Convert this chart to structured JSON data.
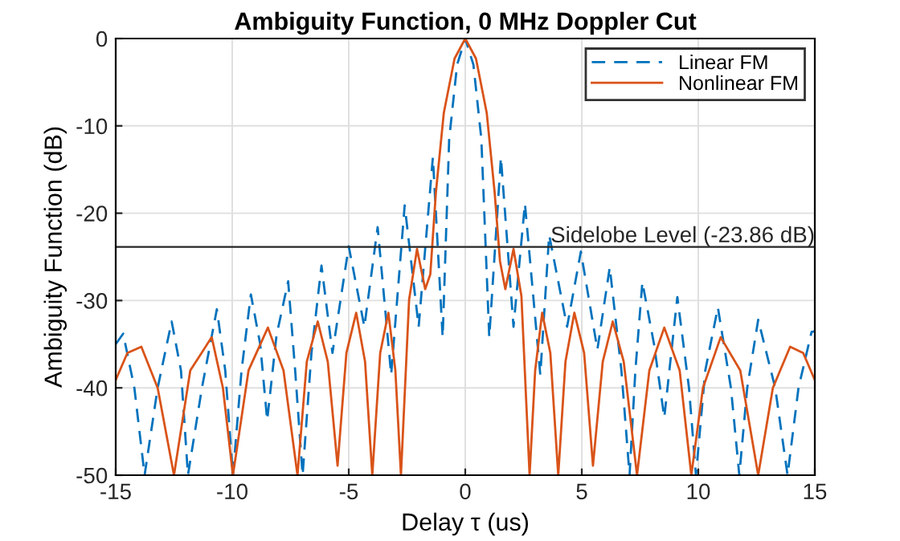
{
  "chart_data": {
    "type": "line",
    "title": "Ambiguity Function, 0 MHz Doppler Cut",
    "xlabel": "Delay τ (us)",
    "ylabel": "Ambiguity Function (dB)",
    "xlim": [
      -15,
      15
    ],
    "xticks": [
      -15,
      -10,
      -5,
      0,
      5,
      10,
      15
    ],
    "ylim": [
      -50,
      0
    ],
    "yticks": [
      -50,
      -40,
      -30,
      -20,
      -10,
      0
    ],
    "grid": true,
    "legend": "top right",
    "series": [
      {
        "name": "Linear FM",
        "color": "#0072bd",
        "line_style": "dashed",
        "x": [
          -15,
          -14.68,
          -14.2,
          -13.76,
          -13.2,
          -12.6,
          -12.2,
          -11.9,
          -11.3,
          -10.66,
          -10.3,
          -9.97,
          -9.6,
          -9.2,
          -8.8,
          -8.5,
          -8.1,
          -7.6,
          -7.3,
          -6.98,
          -6.6,
          -6.17,
          -5.7,
          -5.0,
          -4.33,
          -3.76,
          -3.18,
          -2.6,
          -2.0,
          -1.39,
          -0.97,
          -0.69,
          -0.35,
          0,
          0.35,
          0.69,
          1.03,
          1.53,
          2.07,
          2.56,
          3.22,
          3.6,
          4.37,
          4.96,
          5.67,
          6.2,
          6.7,
          7.05,
          7.3,
          7.6,
          8.1,
          8.54,
          9.1,
          9.6,
          9.9,
          10.3,
          10.84,
          11.4,
          11.76,
          12.1,
          12.57,
          13.3,
          13.83,
          14.3,
          14.86,
          15
        ],
        "values": [
          -35,
          -33.8,
          -40,
          -50,
          -40,
          -32.4,
          -38,
          -50,
          -40,
          -31,
          -38,
          -50,
          -38,
          -29.3,
          -35,
          -43.7,
          -34,
          -27.8,
          -38,
          -50,
          -36,
          -26,
          -36,
          -23.8,
          -33,
          -21.6,
          -38.5,
          -19.1,
          -33,
          -13.6,
          -34.2,
          -11.5,
          -3,
          0,
          -3,
          -11.5,
          -34.2,
          -13.6,
          -33,
          -18.9,
          -38.5,
          -22.5,
          -33,
          -24.4,
          -35.6,
          -26.2,
          -38,
          -50,
          -38,
          -27.9,
          -35,
          -43.4,
          -29.6,
          -40,
          -50,
          -38,
          -30.8,
          -40,
          -50,
          -40,
          -32.2,
          -40,
          -50,
          -40,
          -33.6,
          -33.5
        ]
      },
      {
        "name": "Nonlinear FM",
        "color": "#d95319",
        "line_style": "solid",
        "x": [
          -15,
          -14.5,
          -13.9,
          -13.2,
          -12.5,
          -11.8,
          -10.88,
          -10.4,
          -9.97,
          -9.3,
          -8.47,
          -7.8,
          -7.2,
          -6.8,
          -6.33,
          -5.9,
          -5.48,
          -5.1,
          -4.68,
          -4.3,
          -3.99,
          -3.65,
          -3.3,
          -3.0,
          -2.76,
          -2.41,
          -2.07,
          -1.72,
          -1.5,
          -1.26,
          -0.92,
          -0.46,
          0,
          0.46,
          0.92,
          1.26,
          1.49,
          1.72,
          2.07,
          2.41,
          2.76,
          3.0,
          3.3,
          3.65,
          3.99,
          4.3,
          4.68,
          5.1,
          5.48,
          5.9,
          6.33,
          6.8,
          7.37,
          7.9,
          8.54,
          9.2,
          9.7,
          10.2,
          10.96,
          11.8,
          12.57,
          13.2,
          13.94,
          14.5,
          15
        ],
        "values": [
          -39.1,
          -36,
          -35.3,
          -40,
          -50,
          -38,
          -34.2,
          -40,
          -50,
          -38,
          -33.1,
          -38,
          -50,
          -37,
          -32.4,
          -37,
          -48.9,
          -36,
          -31.4,
          -37,
          -50,
          -36,
          -31.4,
          -38,
          -50,
          -29.9,
          -24.1,
          -28.7,
          -27,
          -17.6,
          -8.5,
          -2.3,
          0,
          -2.3,
          -8.5,
          -17.6,
          -25.5,
          -28.7,
          -24.1,
          -29.5,
          -50,
          -38,
          -31.4,
          -36,
          -50,
          -37,
          -31.4,
          -36,
          -48.9,
          -37,
          -32.4,
          -37,
          -50,
          -38,
          -33.1,
          -38,
          -50,
          -40,
          -34.2,
          -38,
          -50,
          -40,
          -35.3,
          -36,
          -39.1
        ]
      }
    ],
    "ref_lines": [
      {
        "axis": "y",
        "value": -23.86,
        "label": "Sidelobe Level (-23.86 dB)",
        "color": "#262626",
        "line_style": "solid"
      }
    ]
  }
}
